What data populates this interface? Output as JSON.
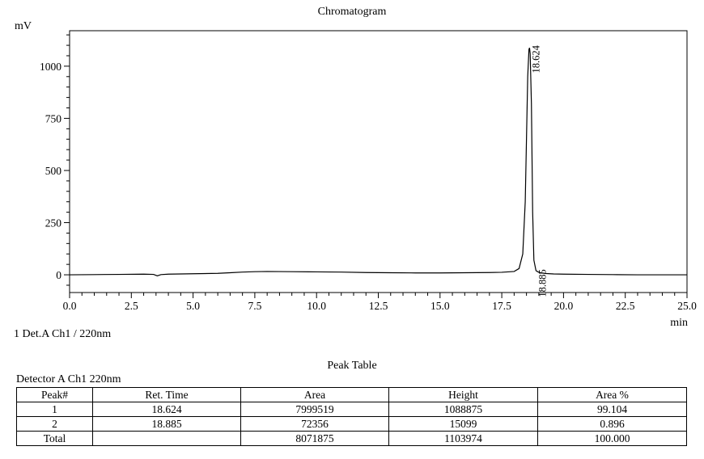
{
  "chart_data": {
    "type": "line",
    "title": "Chromatogram",
    "ylabel": "mV",
    "xlabel": "min",
    "xlim": [
      0.0,
      25.0
    ],
    "ylim": [
      -85,
      1170
    ],
    "x_ticks": [
      0.0,
      2.5,
      5.0,
      7.5,
      10.0,
      12.5,
      15.0,
      17.5,
      20.0,
      22.5,
      25.0
    ],
    "x_tick_labels": [
      "0.0",
      "2.5",
      "5.0",
      "7.5",
      "10.0",
      "12.5",
      "15.0",
      "17.5",
      "20.0",
      "22.5",
      "25.0"
    ],
    "y_ticks": [
      0,
      250,
      500,
      750,
      1000
    ],
    "y_tick_labels": [
      "0",
      "250",
      "500",
      "750",
      "1000"
    ],
    "series": [
      {
        "color": "#000000",
        "x": [
          0.0,
          1.0,
          2.0,
          3.0,
          3.4,
          3.55,
          3.7,
          4.0,
          5.0,
          6.0,
          6.5,
          7.0,
          7.5,
          8.0,
          9.0,
          10.0,
          11.0,
          12.0,
          13.0,
          14.0,
          15.0,
          16.0,
          17.0,
          17.5,
          18.0,
          18.2,
          18.35,
          18.45,
          18.5,
          18.55,
          18.6,
          18.624,
          18.65,
          18.7,
          18.75,
          18.8,
          18.885,
          18.95,
          19.0,
          19.1,
          19.3,
          19.6,
          20.0,
          21.0,
          22.0,
          23.0,
          24.0,
          25.0
        ],
        "y": [
          0,
          1,
          2,
          3,
          2,
          -5,
          1,
          3,
          5,
          7,
          10,
          13,
          15,
          16,
          15,
          14,
          13,
          11,
          10,
          9,
          9,
          10,
          11,
          12,
          16,
          30,
          100,
          350,
          650,
          950,
          1080,
          1088,
          1060,
          820,
          300,
          70,
          20,
          15,
          12,
          9,
          6,
          4,
          3,
          2,
          1,
          0,
          0,
          0
        ]
      }
    ],
    "annotations": [
      {
        "x": 18.624,
        "y": 1088,
        "text": "18.624"
      },
      {
        "x": 18.885,
        "y": 15,
        "text": "18.885"
      }
    ]
  },
  "detector_label": "1 Det.A Ch1 / 220nm",
  "peak_table": {
    "title": "Peak Table",
    "detector": "Detector A Ch1 220nm",
    "columns": [
      "Peak#",
      "Ret. Time",
      "Area",
      "Height",
      "Area %"
    ],
    "rows": [
      [
        "1",
        "18.624",
        "7999519",
        "1088875",
        "99.104"
      ],
      [
        "2",
        "18.885",
        "72356",
        "15099",
        "0.896"
      ],
      [
        "Total",
        "",
        "8071875",
        "1103974",
        "100.000"
      ]
    ]
  }
}
